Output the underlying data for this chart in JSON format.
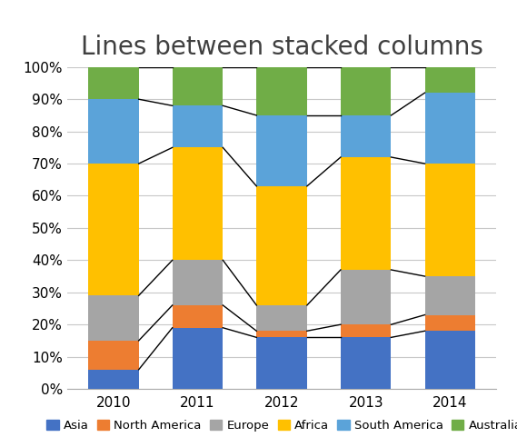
{
  "title": "Lines between stacked columns",
  "years": [
    2010,
    2011,
    2012,
    2013,
    2014
  ],
  "series": {
    "Asia": [
      0.06,
      0.19,
      0.16,
      0.16,
      0.18
    ],
    "North America": [
      0.09,
      0.07,
      0.02,
      0.04,
      0.05
    ],
    "Europe": [
      0.14,
      0.14,
      0.08,
      0.17,
      0.12
    ],
    "Africa": [
      0.41,
      0.35,
      0.37,
      0.35,
      0.35
    ],
    "South America": [
      0.2,
      0.13,
      0.22,
      0.13,
      0.22
    ],
    "Australia": [
      0.1,
      0.12,
      0.15,
      0.15,
      0.08
    ]
  },
  "colors": {
    "Asia": "#4472C4",
    "North America": "#ED7D31",
    "Europe": "#A5A5A5",
    "Africa": "#FFC000",
    "South America": "#5BA3D9",
    "Australia": "#70AD47"
  },
  "bar_width": 0.6,
  "background_color": "#FFFFFF",
  "plot_bg_color": "#FFFFFF",
  "grid_color": "#C8C8C8",
  "line_color": "#000000",
  "ylim": [
    0,
    1.0
  ],
  "yticks": [
    0,
    0.1,
    0.2,
    0.3,
    0.4,
    0.5,
    0.6,
    0.7,
    0.8,
    0.9,
    1.0
  ],
  "ytick_labels": [
    "0%",
    "10%",
    "20%",
    "30%",
    "40%",
    "50%",
    "60%",
    "70%",
    "80%",
    "90%",
    "100%"
  ],
  "title_fontsize": 20,
  "tick_fontsize": 11,
  "legend_fontsize": 9.5
}
